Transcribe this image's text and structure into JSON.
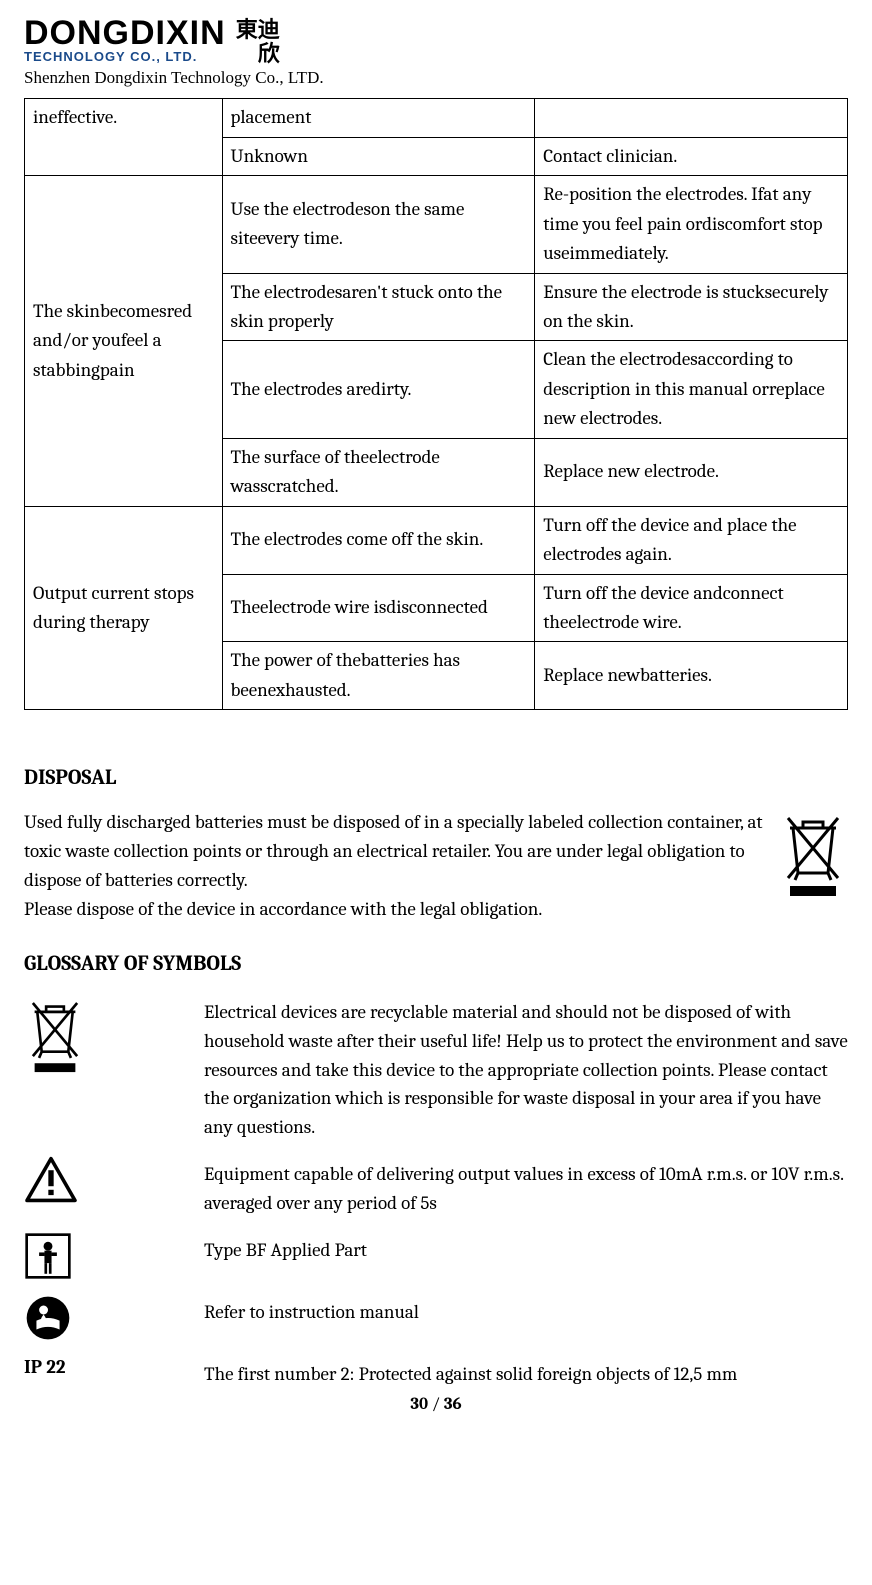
{
  "header": {
    "logo_main": "DONGDIXIN",
    "logo_sub": "TECHNOLOGY CO., LTD.",
    "logo_cn_top": "東迪",
    "logo_cn_bot": "欣",
    "company_line": "Shenzhen Dongdixin Technology Co., LTD."
  },
  "table": {
    "rows": [
      {
        "c1": "ineffective.",
        "c1_rowspan": 2,
        "c2": "placement",
        "c3": ""
      },
      {
        "c2": "Unknown",
        "c3": "Contact clinician."
      },
      {
        "c1": "The skinbecomesred and/or youfeel a stabbingpain",
        "c1_rowspan": 4,
        "c2": "Use the electrodeson the same siteevery time.",
        "c3": "Re-position the electrodes. Ifat any time you feel pain ordiscomfort stop useimmediately."
      },
      {
        "c2": "The electrodesaren't stuck onto the skin properly",
        "c3": "Ensure the electrode is stucksecurely on the skin."
      },
      {
        "c2": "The electrodes aredirty.",
        "c3": "Clean the electrodesaccording to description in this manual orreplace new electrodes."
      },
      {
        "c2": "The surface of theelectrode wasscratched.",
        "c3": "Replace new electrode."
      },
      {
        "c1": "Output current stops during therapy",
        "c1_rowspan": 3,
        "c2": "The electrodes come off the skin.",
        "c3": "Turn off the device and place the electrodes again."
      },
      {
        "c2": "Theelectrode wire isdisconnected",
        "c3": "Turn off the device andconnect theelectrode wire."
      },
      {
        "c2": "The power of thebatteries has beenexhausted.",
        "c3": "Replace newbatteries."
      }
    ]
  },
  "disposal": {
    "heading": "DISPOSAL",
    "body": "Used fully discharged batteries must be disposed of in a specially labeled collection container, at toxic waste collection points or through an electrical retailer. You are under legal obligation to dispose of batteries correctly.\nPlease dispose of the device in accordance with the legal obligation."
  },
  "glossary": {
    "heading": "GLOSSARY OF SYMBOLS",
    "items": [
      {
        "icon": "weee",
        "text": "Electrical devices are recyclable material and should not be disposed of with household waste after their useful life! Help us to protect the environment and save resources and take this device to the appropriate collection points. Please contact the organization which is responsible for waste disposal in your area if you have any questions."
      },
      {
        "icon": "warning",
        "text": "Equipment capable of delivering output values in excess of 10mA r.m.s. or 10V r.m.s. averaged over any period of 5s"
      },
      {
        "icon": "typebf",
        "text": "Type BF Applied Part"
      },
      {
        "icon": "manual",
        "text": "Refer to instruction manual"
      },
      {
        "icon": "ip22",
        "label": "IP 22",
        "text": "The first number 2: Protected against solid foreign objects of 12,5 mm"
      }
    ]
  },
  "footer": {
    "page_current": "30",
    "sep": " / ",
    "page_total": "36"
  },
  "colors": {
    "text": "#000000",
    "bg": "#ffffff",
    "logo_blue": "#1a4a8a",
    "border": "#000000"
  },
  "fonts": {
    "body_family": "Cambria, Georgia, serif",
    "body_size_pt": 14,
    "heading_size_pt": 16
  }
}
